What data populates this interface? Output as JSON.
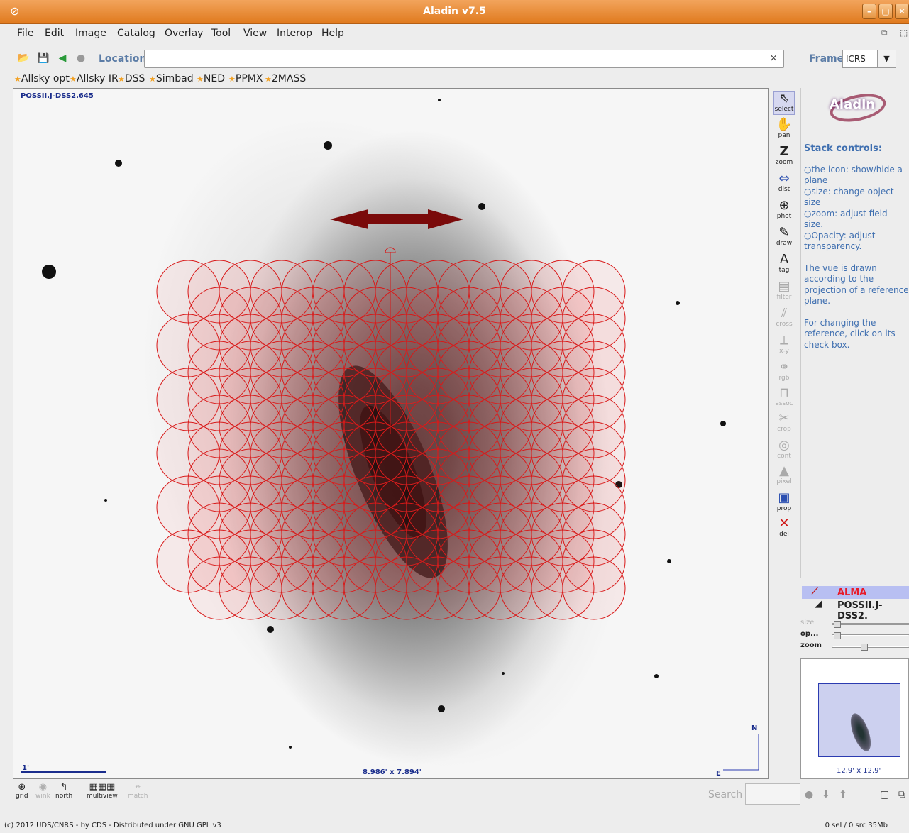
{
  "window": {
    "title": "Aladin v7.5",
    "controls": [
      "–",
      "▢",
      "✕"
    ]
  },
  "menu": [
    "File",
    "Edit",
    "Image",
    "Catalog",
    "Overlay",
    "Tool",
    "View",
    "Interop",
    "Help"
  ],
  "toolbar": {
    "location_label": "Location",
    "location_value": "",
    "clear_glyph": "×",
    "frame_label": "Frame",
    "frame_value": "ICRS"
  },
  "bookmarks": [
    "Allsky opt",
    "Allsky IR",
    "DSS",
    "Simbad",
    "NED",
    "PPMX",
    "2MASS"
  ],
  "view": {
    "survey": "POSSII.J-DSS2.645",
    "fov": "8.986' x 7.894'",
    "scale": "1'",
    "north": "N",
    "east": "E"
  },
  "tools": [
    {
      "label": "select",
      "icon": "select-arrow-icon"
    },
    {
      "label": "pan",
      "icon": "hand-icon"
    },
    {
      "label": "zoom",
      "icon": "zoom-icon"
    },
    {
      "label": "dist",
      "icon": "distance-icon"
    },
    {
      "label": "phot",
      "icon": "photometry-icon"
    },
    {
      "label": "draw",
      "icon": "pencil-icon"
    },
    {
      "label": "tag",
      "icon": "tag-icon"
    },
    {
      "label": "filter",
      "icon": "filter-icon"
    },
    {
      "label": "cross",
      "icon": "cross-icon"
    },
    {
      "label": "x-y",
      "icon": "xy-plot-icon"
    },
    {
      "label": "rgb",
      "icon": "rgb-icon"
    },
    {
      "label": "assoc",
      "icon": "assoc-icon"
    },
    {
      "label": "crop",
      "icon": "scissors-icon"
    },
    {
      "label": "cont",
      "icon": "contour-icon"
    },
    {
      "label": "pixel",
      "icon": "pixel-icon"
    },
    {
      "label": "prop",
      "icon": "properties-icon"
    },
    {
      "label": "del",
      "icon": "delete-icon"
    }
  ],
  "help": {
    "heading": "Stack controls:",
    "items": [
      "○the icon: show/hide a plane",
      "○size: change object size",
      "○zoom: adjust field size.",
      "○Opacity: adjust transparency."
    ],
    "para1": "The vue is drawn according to the projection of a reference plane.",
    "para2": "For changing the reference, click on its check box."
  },
  "planes": [
    {
      "name": "ALMA"
    },
    {
      "name": "POSSII.J-DSS2."
    }
  ],
  "sliders": {
    "size": "size",
    "opacity": "op...",
    "zoom": "zoom"
  },
  "preview": {
    "dims": "12.9' x 12.9'"
  },
  "bottom_tools": [
    "grid",
    "wink",
    "north",
    "multiview",
    "match"
  ],
  "search": {
    "label": "Search",
    "value": ""
  },
  "status": {
    "copyright": "(c) 2012 UDS/CNRS - by CDS - Distributed under GNU GPL v3",
    "memory": "0 sel / 0 src   35Mb"
  }
}
